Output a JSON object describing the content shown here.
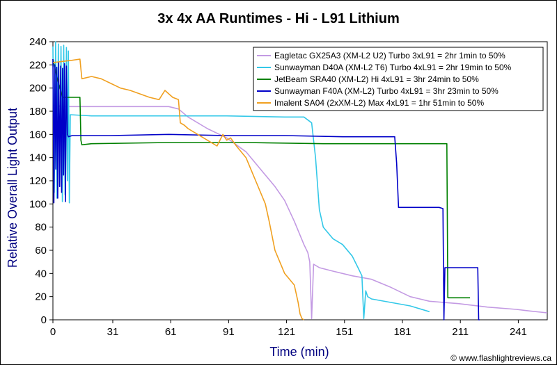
{
  "chart_data": {
    "type": "line",
    "title": "3x 4x AA Runtimes - Hi - L91 Lithium",
    "xlabel": "Time (min)",
    "ylabel": "Relative Overall Light Output",
    "credit": "© www.flashlightreviews.ca",
    "xlim": [
      0,
      256
    ],
    "ylim": [
      0,
      240
    ],
    "xticks": [
      0,
      31,
      61,
      91,
      121,
      151,
      181,
      211,
      241
    ],
    "yticks": [
      0,
      20,
      40,
      60,
      80,
      100,
      120,
      140,
      160,
      180,
      200,
      220,
      240
    ],
    "grid": false,
    "legend_position": "top-right",
    "series": [
      {
        "name": "Eagletac GX25A3 (XM-L2 U2) Turbo 3xL91 = 2hr 1min to 50%",
        "color": "#c39ae3",
        "x": [
          0,
          2,
          5,
          10,
          20,
          40,
          60,
          65,
          70,
          80,
          90,
          100,
          105,
          110,
          115,
          120,
          125,
          130,
          132,
          133,
          134,
          135,
          138,
          145,
          155,
          165,
          175,
          185,
          190,
          195,
          210,
          225,
          240,
          245,
          256
        ],
        "y": [
          185,
          185,
          184,
          184,
          184,
          184,
          184,
          182,
          175,
          165,
          157,
          145,
          135,
          125,
          115,
          103,
          85,
          65,
          58,
          50,
          1,
          48,
          45,
          42,
          38,
          35,
          28,
          20,
          18,
          16,
          14,
          11,
          9,
          8,
          6
        ]
      },
      {
        "name": "Sunwayman D40A (XM-L2 T6) Turbo 4xL91 = 2hr 19min to 50%",
        "color": "#33c8e8",
        "x": [
          0,
          0.7,
          1.4,
          2.1,
          2.8,
          3.5,
          4.2,
          4.9,
          5.6,
          6.3,
          7,
          7.5,
          8,
          8.5,
          9,
          20,
          60,
          90,
          120,
          130,
          134,
          136,
          138,
          140,
          145,
          150,
          155,
          158,
          160,
          161,
          162,
          163,
          165,
          175,
          185,
          195
        ],
        "y": [
          236,
          110,
          240,
          105,
          238,
          115,
          236,
          102,
          237,
          108,
          235,
          120,
          232,
          101,
          177,
          176,
          176,
          176,
          175,
          175,
          170,
          140,
          95,
          80,
          70,
          65,
          55,
          45,
          38,
          1,
          25,
          20,
          18,
          15,
          12,
          7
        ]
      },
      {
        "name": "JetBeam SRA40 (XM-L2) Hi 4xL91 = 3hr 24min to 50%",
        "color": "#008000",
        "x": [
          0,
          2,
          5,
          14,
          14.5,
          15,
          20,
          60,
          100,
          140,
          180,
          200,
          204,
          204.5,
          205,
          216
        ],
        "y": [
          225,
          210,
          192,
          192,
          155,
          151,
          152,
          153,
          153,
          152,
          152,
          152,
          152,
          19,
          19,
          19
        ]
      },
      {
        "name": "Sunwayman F40A (XM-L2) Turbo 4xL91 = 3hr 23min to 50%",
        "color": "#0000c8",
        "x": [
          0,
          0.5,
          1,
          1.5,
          2,
          2.5,
          3,
          3.5,
          4,
          4.5,
          5,
          5.5,
          6,
          6.5,
          7,
          7.5,
          8,
          10,
          30,
          60,
          90,
          120,
          150,
          177,
          178,
          179,
          200,
          202,
          202.5,
          203,
          218,
          220,
          220.5,
          221
        ],
        "y": [
          225,
          101,
          220,
          130,
          218,
          105,
          222,
          115,
          219,
          110,
          217,
          125,
          221,
          102,
          219,
          160,
          158,
          159,
          159,
          160,
          159,
          159,
          158,
          158,
          135,
          97,
          97,
          96,
          0,
          45,
          45,
          45,
          0,
          0
        ]
      },
      {
        "name": "Imalent SA04 (2xXM-L2) Max 4xL91 = 1hr 51min to 50%",
        "color": "#f0a020",
        "x": [
          0,
          5,
          10,
          14,
          15,
          20,
          25,
          30,
          35,
          40,
          45,
          50,
          55,
          58,
          60,
          62,
          65,
          66,
          68,
          70,
          75,
          80,
          85,
          88,
          90,
          92,
          95,
          100,
          105,
          110,
          112,
          115,
          120,
          125,
          127,
          128,
          129,
          130
        ],
        "y": [
          222,
          223,
          224,
          225,
          208,
          210,
          208,
          204,
          200,
          198,
          195,
          192,
          190,
          198,
          195,
          192,
          190,
          170,
          168,
          165,
          160,
          155,
          150,
          160,
          155,
          157,
          150,
          140,
          120,
          100,
          85,
          60,
          40,
          30,
          15,
          5,
          1,
          0
        ]
      }
    ]
  }
}
